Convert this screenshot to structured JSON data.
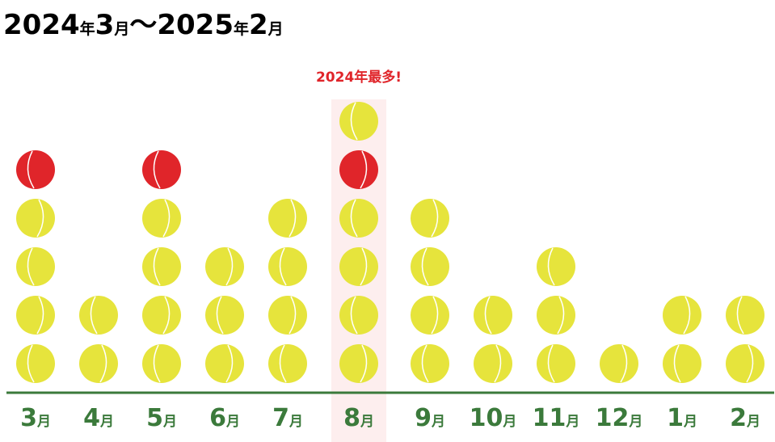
{
  "chart_data": {
    "type": "pictograph",
    "title": "2024年3月〜2025年2月",
    "annotation": "2024年最多!",
    "categories": [
      "3月",
      "4月",
      "5月",
      "6月",
      "7月",
      "8月",
      "9月",
      "10月",
      "11月",
      "12月",
      "1月",
      "2月"
    ],
    "values": [
      5,
      2,
      5,
      3,
      4,
      6,
      4,
      2,
      3,
      1,
      2,
      2
    ],
    "color": "#e6e43c",
    "accent_color": "#e0252a",
    "accent_rank": 5,
    "highlight": 5,
    "highlight_color": "#fdeeee",
    "axis_color": "#3b7a3b"
  }
}
